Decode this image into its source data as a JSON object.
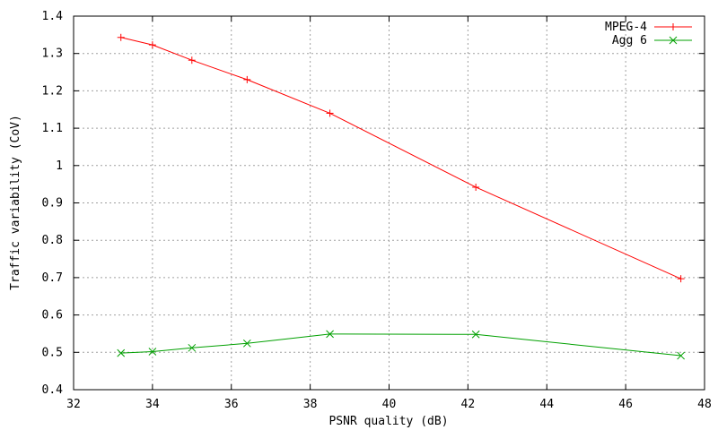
{
  "chart_data": {
    "type": "line",
    "xlabel": "PSNR quality (dB)",
    "ylabel": "Traffic variability (CoV)",
    "xlim": [
      32,
      48
    ],
    "ylim": [
      0.4,
      1.4
    ],
    "x_ticks": [
      32,
      34,
      36,
      38,
      40,
      42,
      44,
      46,
      48
    ],
    "y_ticks": [
      0.4,
      0.5,
      0.6,
      0.7,
      0.8,
      0.9,
      1,
      1.1,
      1.2,
      1.3,
      1.4
    ],
    "x_tick_labels": [
      "32",
      "34",
      "36",
      "38",
      "40",
      "42",
      "44",
      "46",
      "48"
    ],
    "y_tick_labels": [
      "0.4",
      "0.5",
      "0.6",
      "0.7",
      "0.8",
      "0.9",
      "1",
      "1.1",
      "1.2",
      "1.3",
      "1.4"
    ],
    "grid": true,
    "legend_position": "top-right",
    "series": [
      {
        "name": "MPEG-4",
        "color": "#ff0000",
        "marker": "plus",
        "x": [
          33.2,
          34.0,
          35.0,
          36.4,
          38.5,
          42.2,
          47.4
        ],
        "y": [
          1.343,
          1.323,
          1.282,
          1.23,
          1.14,
          0.942,
          0.697
        ]
      },
      {
        "name": "Agg 6",
        "color": "#00a000",
        "marker": "cross",
        "x": [
          33.2,
          34.0,
          35.0,
          36.4,
          38.5,
          42.2,
          47.4
        ],
        "y": [
          0.498,
          0.502,
          0.512,
          0.524,
          0.549,
          0.548,
          0.491
        ]
      }
    ]
  }
}
